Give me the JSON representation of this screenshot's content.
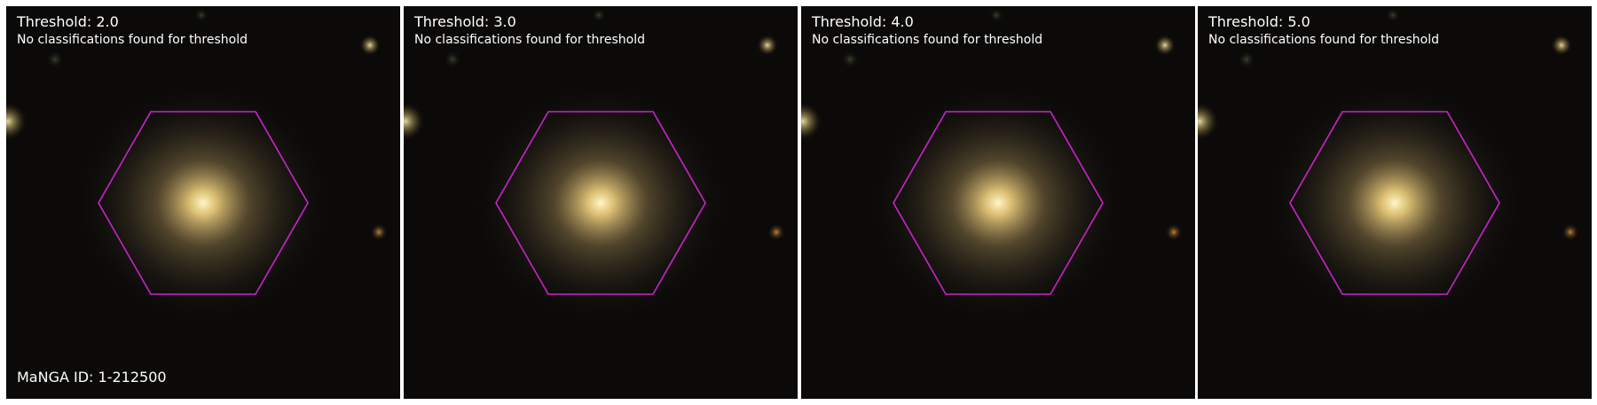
{
  "figure": {
    "panels": [
      {
        "title": "Threshold: 2.0",
        "message": "No classifications found for threshold"
      },
      {
        "title": "Threshold: 3.0",
        "message": "No classifications found for threshold"
      },
      {
        "title": "Threshold: 4.0",
        "message": "No classifications found for threshold"
      },
      {
        "title": "Threshold: 5.0",
        "message": "No classifications found for threshold"
      }
    ],
    "manga_id": "MaNGA ID: 1-212500",
    "hexagon_color": "#cc22cc"
  }
}
